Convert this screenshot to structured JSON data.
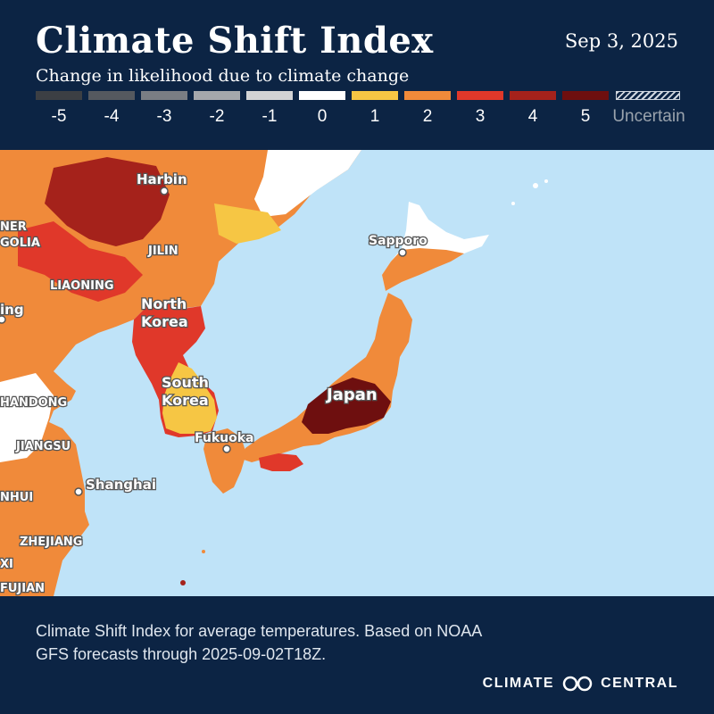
{
  "title": "Climate Shift Index",
  "date": "Sep 3, 2025",
  "subtitle": "Change in likelihood due to climate change",
  "legend": {
    "items": [
      {
        "label": "-5",
        "color": "#3c3f44"
      },
      {
        "label": "-4",
        "color": "#55595f"
      },
      {
        "label": "-3",
        "color": "#7a7e84"
      },
      {
        "label": "-2",
        "color": "#a5a8ac"
      },
      {
        "label": "-1",
        "color": "#d2d3d5"
      },
      {
        "label": "0",
        "color": "#ffffff"
      },
      {
        "label": "1",
        "color": "#f6c644"
      },
      {
        "label": "2",
        "color": "#f08a3a"
      },
      {
        "label": "3",
        "color": "#e0382a"
      },
      {
        "label": "4",
        "color": "#a5221b"
      },
      {
        "label": "5",
        "color": "#6e0f0f"
      }
    ],
    "uncertain_label": "Uncertain"
  },
  "map": {
    "labels": {
      "harbin": "Harbin",
      "inner_mongolia_1": "NER",
      "inner_mongolia_2": "GOLIA",
      "jilin": "JILIN",
      "liaoning": "LIAONING",
      "beijing": "ing",
      "north_korea_1": "North",
      "north_korea_2": "Korea",
      "south_korea_1": "South",
      "south_korea_2": "Korea",
      "shandong": "HANDONG",
      "jiangsu": "JIANGSU",
      "anhui": "NHUI",
      "shanghai": "Shanghai",
      "zhejiang": "ZHEJIANG",
      "jiangxi": "XI",
      "fujian": "FUJIAN",
      "sapporo": "Sapporo",
      "japan": "Japan",
      "fukuoka": "Fukuoka"
    },
    "colors": {
      "ocean": "#bfe3f8"
    }
  },
  "caption": "Climate Shift Index for average temperatures. Based on NOAA GFS forecasts through 2025-09-02T18Z.",
  "brand": {
    "left": "CLIMATE",
    "right": "CENTRAL",
    "logo_icon": "infinity-rings-icon"
  }
}
